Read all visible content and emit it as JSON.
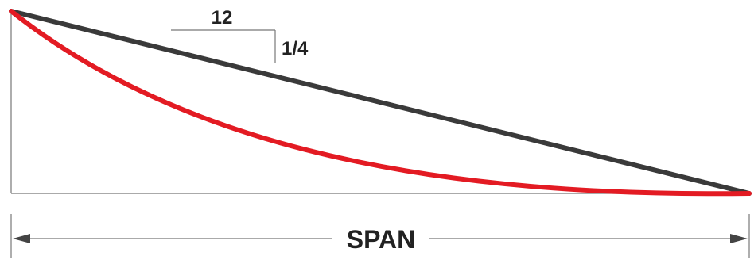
{
  "diagram": {
    "slope_run_label": "12",
    "slope_rise_label": "1/4",
    "span_label": "SPAN"
  },
  "colors": {
    "straight_line": "#3a3a3a",
    "deflected_curve": "#e31b23",
    "guide_lines": "#777777",
    "text": "#222222"
  }
}
